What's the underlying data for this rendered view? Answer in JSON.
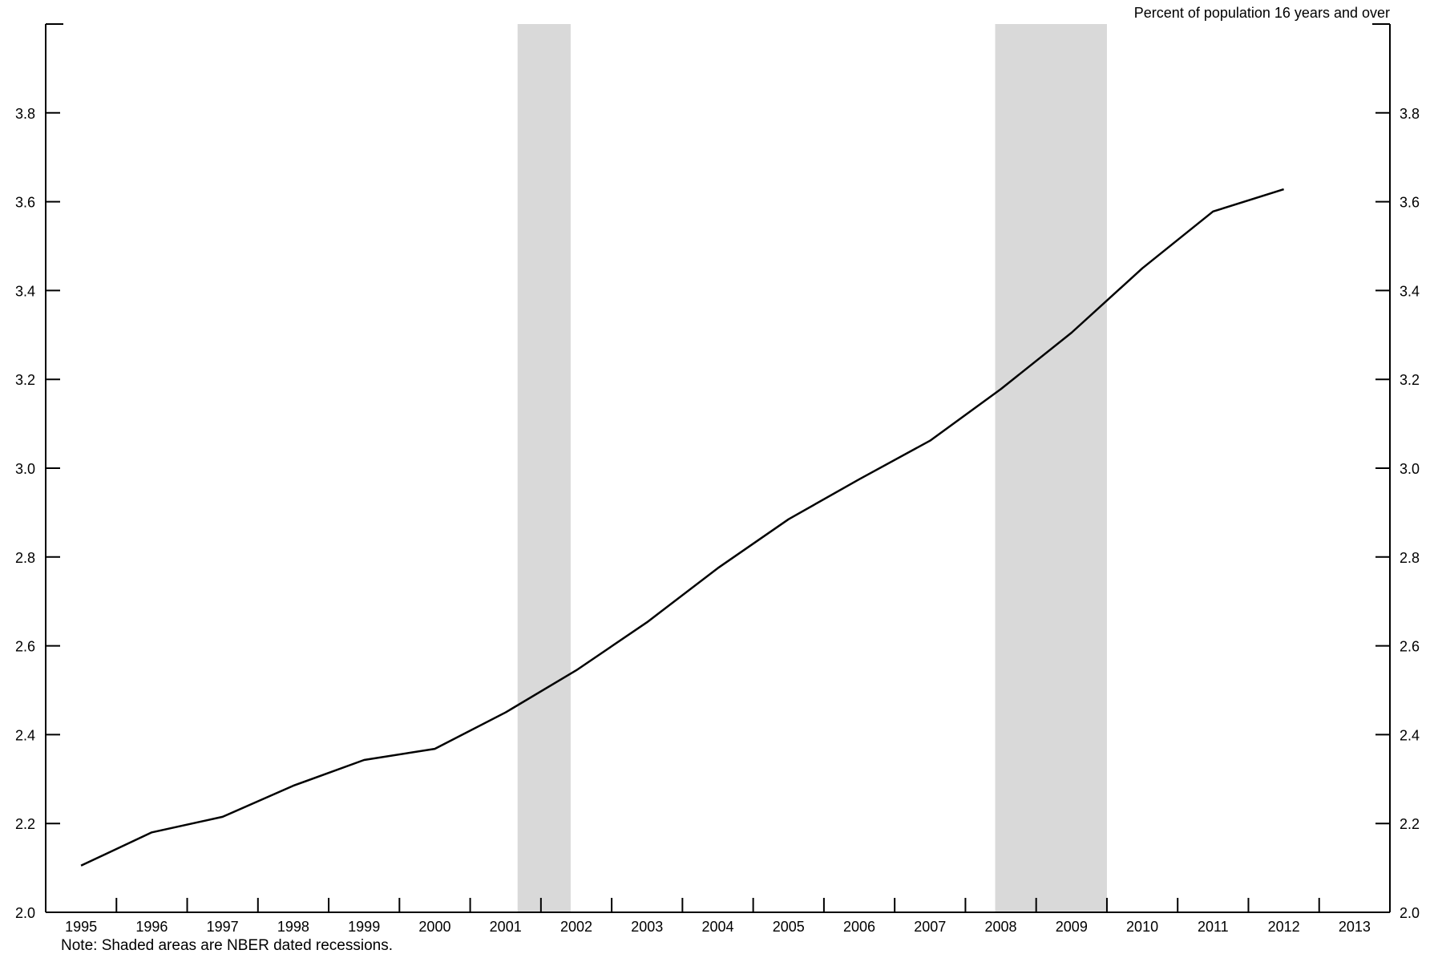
{
  "chart_data": {
    "type": "line",
    "ylabel": "Percent of population 16 years and over",
    "note": "Note:  Shaded areas are NBER dated recessions.",
    "xlim": [
      1995,
      2013
    ],
    "ylim": [
      2.0,
      4.0
    ],
    "x_ticks": [
      "1995",
      "1996",
      "1997",
      "1998",
      "1999",
      "2000",
      "2001",
      "2002",
      "2003",
      "2004",
      "2005",
      "2006",
      "2007",
      "2008",
      "2009",
      "2010",
      "2011",
      "2012",
      "2013"
    ],
    "y_ticks": [
      "2.0",
      "2.2",
      "2.4",
      "2.6",
      "2.8",
      "3.0",
      "3.2",
      "3.4",
      "3.6",
      "3.8"
    ],
    "grid": false,
    "line_color": "#000000",
    "recession_color": "#d9d9d9",
    "recessions": [
      {
        "start": 2001.17,
        "end": 2001.92
      },
      {
        "start": 2007.92,
        "end": 2009.5
      }
    ],
    "series": [
      {
        "x": [
          1995,
          1996,
          1997,
          1998,
          1999,
          2000,
          2001,
          2002,
          2003,
          2004,
          2005,
          2006,
          2007,
          2008,
          2009,
          2010,
          2011,
          2012
        ],
        "values": [
          2.105,
          2.18,
          2.215,
          2.285,
          2.343,
          2.368,
          2.45,
          2.545,
          2.653,
          2.775,
          2.885,
          2.975,
          3.062,
          3.178,
          3.305,
          3.45,
          3.578,
          3.628
        ]
      }
    ]
  }
}
